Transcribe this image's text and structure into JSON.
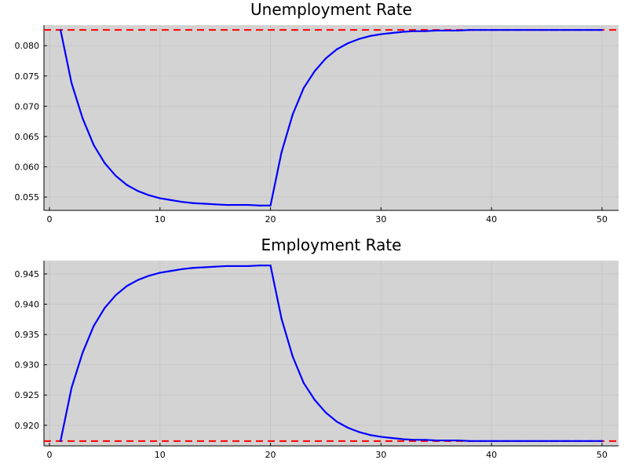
{
  "chart_data": [
    {
      "type": "line",
      "title": "Unemployment Rate",
      "xlabel": "",
      "ylabel": "",
      "xlim": [
        -0.5,
        51.5
      ],
      "ylim": [
        0.0528,
        0.0834
      ],
      "xticks": [
        0,
        10,
        20,
        30,
        40,
        50
      ],
      "xtick_labels": [
        "0",
        "10",
        "20",
        "30",
        "40",
        "50"
      ],
      "yticks": [
        0.055,
        0.06,
        0.065,
        0.07,
        0.075,
        0.08
      ],
      "ytick_labels": [
        "0.055",
        "0.060",
        "0.065",
        "0.070",
        "0.075",
        "0.080"
      ],
      "grid": true,
      "background": "#d3d3d3",
      "series": [
        {
          "color": "#0000ff",
          "x": [
            1,
            2,
            3,
            4,
            5,
            6,
            7,
            8,
            9,
            10,
            11,
            12,
            13,
            14,
            15,
            16,
            17,
            18,
            19,
            20,
            21,
            22,
            23,
            24,
            25,
            26,
            27,
            28,
            29,
            30,
            31,
            32,
            33,
            34,
            35,
            36,
            37,
            38,
            39,
            40,
            41,
            42,
            43,
            44,
            45,
            46,
            47,
            48,
            49,
            50
          ],
          "y": [
            0.0826,
            0.0738,
            0.068,
            0.0636,
            0.0606,
            0.0585,
            0.057,
            0.056,
            0.0553,
            0.0548,
            0.0545,
            0.0542,
            0.054,
            0.0539,
            0.0538,
            0.0537,
            0.0537,
            0.0537,
            0.0536,
            0.0536,
            0.0624,
            0.0686,
            0.073,
            0.0758,
            0.0779,
            0.0794,
            0.0804,
            0.0811,
            0.0816,
            0.0819,
            0.0821,
            0.0823,
            0.0824,
            0.0824,
            0.0825,
            0.0825,
            0.0825,
            0.0826,
            0.0826,
            0.0826,
            0.0826,
            0.0826,
            0.0826,
            0.0826,
            0.0826,
            0.0826,
            0.0826,
            0.0826,
            0.0826,
            0.0826
          ]
        }
      ],
      "reference_line": {
        "y": 0.0826,
        "color": "#ff0000",
        "style": "dashed"
      }
    },
    {
      "type": "line",
      "title": "Employment Rate",
      "xlabel": "",
      "ylabel": "",
      "xlim": [
        -0.5,
        51.5
      ],
      "ylim": [
        0.9166,
        0.9472
      ],
      "xticks": [
        0,
        10,
        20,
        30,
        40,
        50
      ],
      "xtick_labels": [
        "0",
        "10",
        "20",
        "30",
        "40",
        "50"
      ],
      "yticks": [
        0.92,
        0.925,
        0.93,
        0.935,
        0.94,
        0.945
      ],
      "ytick_labels": [
        "0.920",
        "0.925",
        "0.930",
        "0.935",
        "0.940",
        "0.945"
      ],
      "grid": true,
      "background": "#d3d3d3",
      "series": [
        {
          "color": "#0000ff",
          "x": [
            1,
            2,
            3,
            4,
            5,
            6,
            7,
            8,
            9,
            10,
            11,
            12,
            13,
            14,
            15,
            16,
            17,
            18,
            19,
            20,
            21,
            22,
            23,
            24,
            25,
            26,
            27,
            28,
            29,
            30,
            31,
            32,
            33,
            34,
            35,
            36,
            37,
            38,
            39,
            40,
            41,
            42,
            43,
            44,
            45,
            46,
            47,
            48,
            49,
            50
          ],
          "y": [
            0.9174,
            0.9262,
            0.932,
            0.9364,
            0.9394,
            0.9415,
            0.943,
            0.944,
            0.9447,
            0.9452,
            0.9455,
            0.9458,
            0.946,
            0.9461,
            0.9462,
            0.9463,
            0.9463,
            0.9463,
            0.9464,
            0.9464,
            0.9376,
            0.9314,
            0.927,
            0.9242,
            0.9221,
            0.9206,
            0.9196,
            0.9189,
            0.9184,
            0.9181,
            0.9179,
            0.9177,
            0.9176,
            0.9176,
            0.9175,
            0.9175,
            0.9175,
            0.9174,
            0.9174,
            0.9174,
            0.9174,
            0.9174,
            0.9174,
            0.9174,
            0.9174,
            0.9174,
            0.9174,
            0.9174,
            0.9174,
            0.9174
          ]
        }
      ],
      "reference_line": {
        "y": 0.9174,
        "color": "#ff0000",
        "style": "dashed"
      }
    }
  ]
}
